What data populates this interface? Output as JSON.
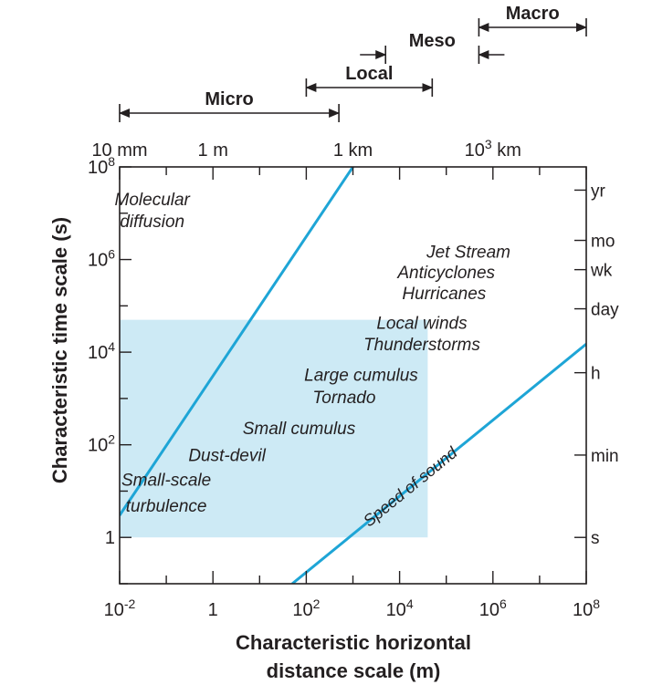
{
  "chart_data": {
    "type": "line",
    "x_axis": {
      "label_line1": "Characteristic horizontal",
      "label_line2": "distance scale (m)",
      "scale": "log",
      "range": [
        0.01,
        100000000
      ],
      "ticks": [
        {
          "label": "10",
          "sup": "-2",
          "value": 0.01
        },
        {
          "label": "1",
          "sup": "",
          "value": 1
        },
        {
          "label": "10",
          "sup": "2",
          "value": 100
        },
        {
          "label": "10",
          "sup": "4",
          "value": 10000
        },
        {
          "label": "10",
          "sup": "6",
          "value": 1000000
        },
        {
          "label": "10",
          "sup": "8",
          "value": 100000000
        }
      ],
      "top_ticks": [
        {
          "label": "10 mm",
          "sup": "",
          "suffix": "",
          "value": 0.01
        },
        {
          "label": "1 m",
          "sup": "",
          "suffix": "",
          "value": 1
        },
        {
          "label": "1 km",
          "sup": "",
          "suffix": "",
          "value": 1000
        },
        {
          "label": "10",
          "sup": "3",
          "suffix": " km",
          "value": 1000000
        }
      ]
    },
    "y_axis": {
      "label": "Characteristic time scale (s)",
      "scale": "log",
      "range": [
        0.1,
        100000000
      ],
      "ticks": [
        {
          "label": "1",
          "sup": "",
          "value": 1
        },
        {
          "label": "10",
          "sup": "2",
          "value": 100
        },
        {
          "label": "10",
          "sup": "4",
          "value": 10000
        },
        {
          "label": "10",
          "sup": "6",
          "value": 1000000
        },
        {
          "label": "10",
          "sup": "8",
          "value": 100000000
        }
      ],
      "right_ticks": [
        {
          "label": "s",
          "value": 1
        },
        {
          "label": "min",
          "value": 60
        },
        {
          "label": "h",
          "value": 3600
        },
        {
          "label": "day",
          "value": 86400
        },
        {
          "label": "wk",
          "value": 604800
        },
        {
          "label": "mo",
          "value": 2592000
        },
        {
          "label": "yr",
          "value": 31536000
        }
      ]
    },
    "series": [
      {
        "points": [
          [
            0.01,
            3
          ],
          [
            1000,
            100000000
          ]
        ]
      },
      {
        "name": "Speed of sound",
        "points": [
          [
            50,
            0.1
          ],
          [
            100000000,
            15000
          ]
        ]
      }
    ],
    "shaded_region": {
      "x": [
        0.01,
        40000
      ],
      "y": [
        1,
        50000
      ]
    },
    "scale_ranges": [
      {
        "label": "Micro",
        "x": [
          0.01,
          500
        ]
      },
      {
        "label": "Local",
        "x": [
          100,
          50000
        ]
      },
      {
        "label": "Meso",
        "x": [
          5000,
          500000
        ],
        "pointing_inward": true
      },
      {
        "label": "Macro",
        "x": [
          500000,
          100000000
        ]
      }
    ],
    "phenomena": [
      {
        "label": "Molecular",
        "x": 0.05,
        "y": 15000000
      },
      {
        "label": "diffusion",
        "x": 0.05,
        "y": 5000000
      },
      {
        "label": "Jet Stream",
        "x": 300000,
        "y": 1100000
      },
      {
        "label": "Anticyclones",
        "x": 100000,
        "y": 400000
      },
      {
        "label": "Hurricanes",
        "x": 90000,
        "y": 140000
      },
      {
        "label": "Local winds",
        "x": 30000,
        "y": 32000
      },
      {
        "label": "Thunderstorms",
        "x": 30000,
        "y": 11000
      },
      {
        "label": "Large cumulus",
        "x": 1500,
        "y": 2400
      },
      {
        "label": "Tornado",
        "x": 650,
        "y": 800
      },
      {
        "label": "Small cumulus",
        "x": 70,
        "y": 170
      },
      {
        "label": "Dust-devil",
        "x": 2,
        "y": 45
      },
      {
        "label": "Small-scale",
        "x": 0.1,
        "y": 13
      },
      {
        "label": "turbulence",
        "x": 0.1,
        "y": 3.6
      }
    ],
    "annotation": {
      "text": "Speed of sound",
      "x": 20000,
      "y": 10
    }
  },
  "colors": {
    "line": "#1ea5d6",
    "shade": "#cdeaf5",
    "ink": "#231f20"
  }
}
